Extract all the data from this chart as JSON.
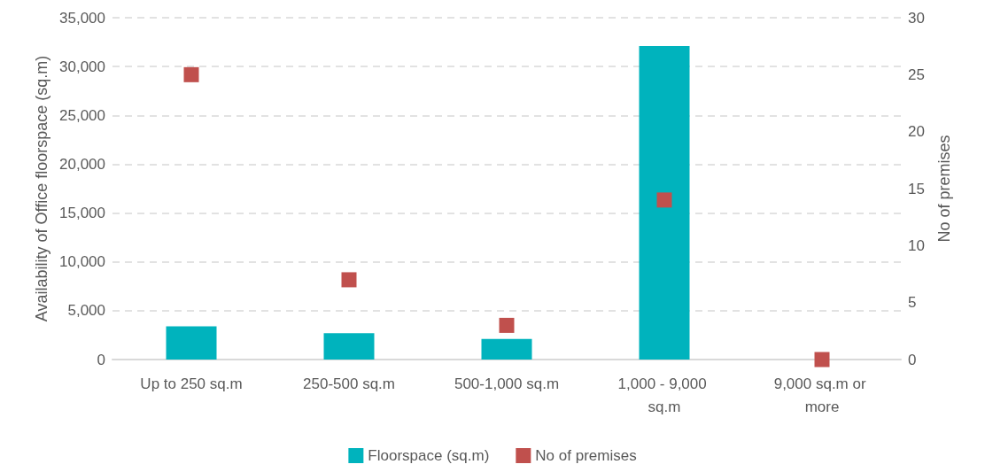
{
  "chart_data": {
    "type": "bar",
    "ylabel": "Availability of Office floorspace (sq.m)",
    "y2label": "No of premises",
    "categories": [
      "Up to 250 sq.m",
      "250-500 sq.m",
      "500-1,000 sq.m",
      "1,000 - 9,000 sq.m",
      "9,000 sq.m or more"
    ],
    "series": [
      {
        "name": "Floorspace (sq.m)",
        "color": "#00b3bd",
        "values": [
          3400,
          2700,
          2100,
          32100,
          null
        ]
      },
      {
        "name": "No of premises",
        "type": "scatter",
        "axis": "y2",
        "marker": "square",
        "color": "#c0504d",
        "values": [
          25,
          7,
          3,
          14,
          0
        ]
      }
    ],
    "ylim": [
      0,
      35000
    ],
    "yticks": [
      0,
      {
        "value": 5000,
        "label": "5,000"
      },
      {
        "value": 10000,
        "label": "10,000"
      },
      {
        "value": 15000,
        "label": "15,000"
      },
      {
        "value": 20000,
        "label": "20,000"
      },
      {
        "value": 25000,
        "label": "25,000"
      },
      {
        "value": 30000,
        "label": "30,000"
      },
      {
        "value": 35000,
        "label": "35,000"
      }
    ],
    "y2lim": [
      0,
      30
    ],
    "y2ticks": [
      0,
      5,
      10,
      15,
      20,
      25,
      30
    ],
    "grid": "y",
    "legend": "bottom"
  }
}
